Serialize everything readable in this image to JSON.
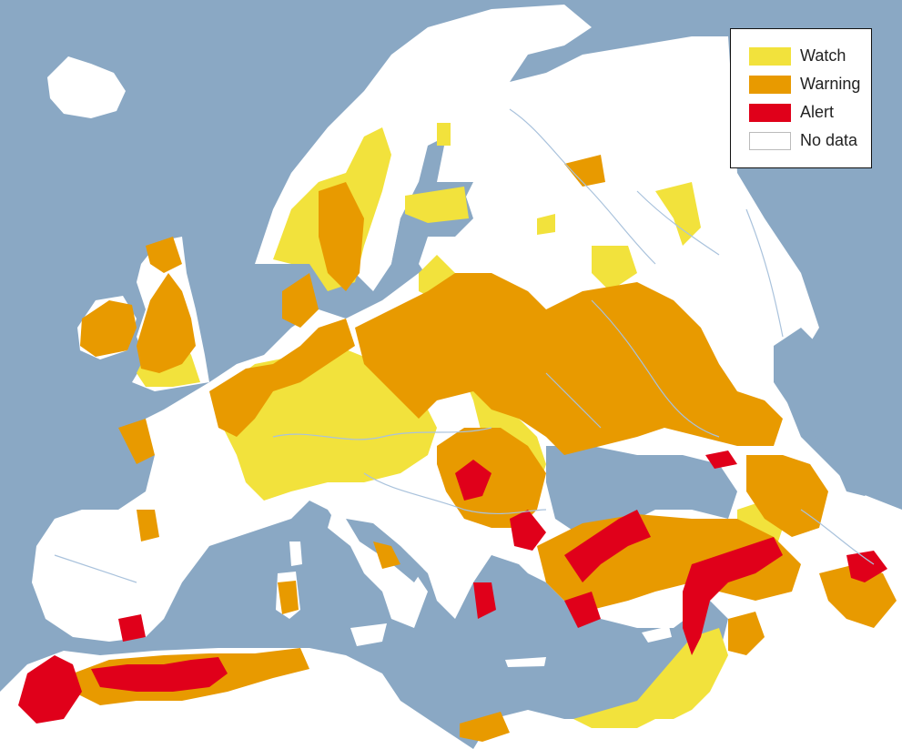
{
  "legend": {
    "items": [
      {
        "label": "Watch",
        "color": "#f2e23c"
      },
      {
        "label": "Warning",
        "color": "#e89a00"
      },
      {
        "label": "Alert",
        "color": "#e0001a"
      },
      {
        "label": "No data",
        "color": "#ffffff"
      }
    ]
  },
  "colors": {
    "sea": "#8aa8c4",
    "land": "#ffffff",
    "rivers": "#a9c2dc"
  }
}
